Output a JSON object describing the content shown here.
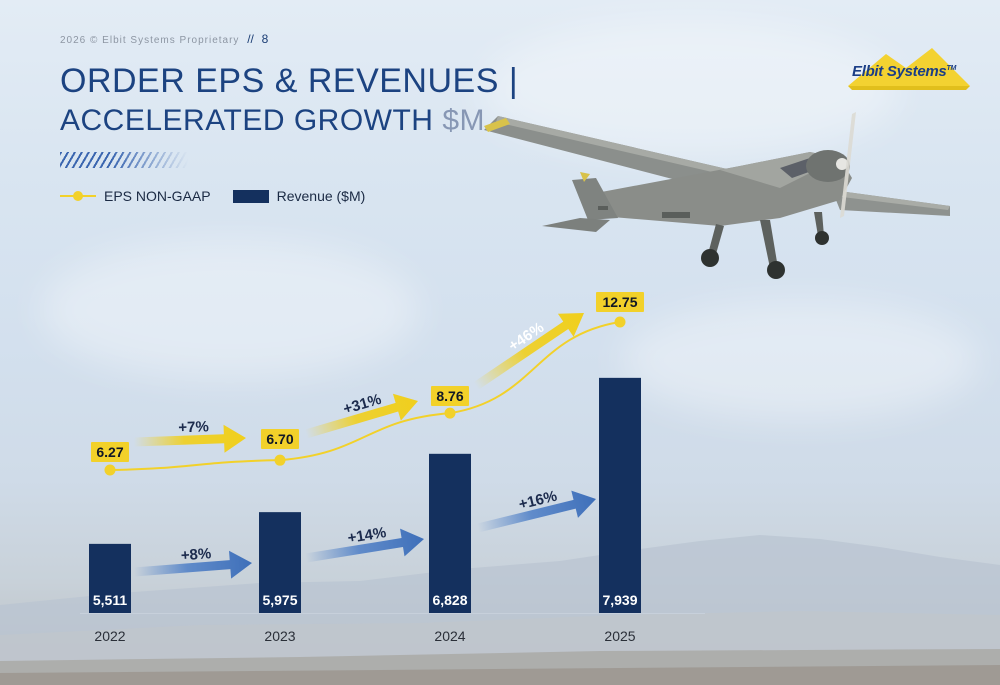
{
  "header": {
    "meta": "2026 © Elbit Systems Proprietary",
    "page_sep": "//",
    "page_number": "8"
  },
  "title": {
    "line1": "ORDER EPS & REVENUES |",
    "line2": "ACCELERATED GROWTH",
    "unit": "$M"
  },
  "logo": {
    "text": "Elbit Systems",
    "tm": "TM"
  },
  "legend": [
    {
      "label": "EPS NON-GAAP",
      "color": "#f2d12a"
    },
    {
      "label": "Revenue ($M)",
      "color": "#14305e"
    }
  ],
  "colors": {
    "revenue": "#14305e",
    "eps": "#f2d12a",
    "growth_eps": "#f0cf1d",
    "growth_rev": "#4d7ec6"
  },
  "chart_data": {
    "type": "bar",
    "categories": [
      "2022",
      "2023",
      "2024",
      "2025"
    ],
    "series": [
      {
        "name": "Revenue ($M)",
        "type": "bar",
        "values": [
          5511,
          5975,
          6828,
          7939
        ],
        "labels": [
          "5,511",
          "5,975",
          "6,828",
          "7,939"
        ]
      },
      {
        "name": "EPS NON-GAAP",
        "type": "line",
        "values": [
          6.27,
          6.7,
          8.76,
          12.75
        ],
        "labels": [
          "6.27",
          "6.70",
          "8.76",
          "12.75"
        ]
      }
    ],
    "growth_eps": [
      "+7%",
      "+31%",
      "+46%"
    ],
    "growth_revenue": [
      "+8%",
      "+14%",
      "+16%"
    ]
  }
}
